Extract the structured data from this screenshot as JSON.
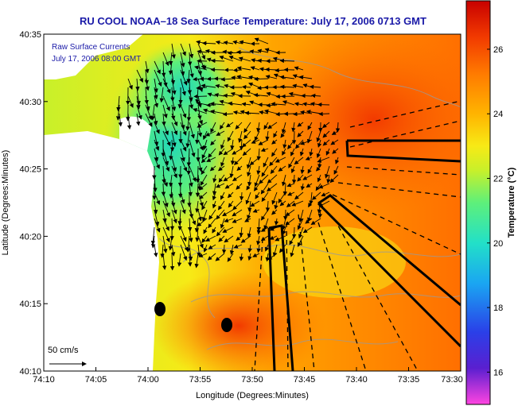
{
  "figure": {
    "title": "RU COOL  NOAA–18  Sea Surface Temperature:  July 17, 2006 0713 GMT",
    "legend_line1": "Raw Surface Currents",
    "legend_line2": "July 17, 2006 08:00 GMT",
    "scale_label": "50 cm/s",
    "xlabel": "Longitude (Degrees:Minutes)",
    "ylabel": "Latitude (Degrees:Minutes)",
    "xticks": [
      "74:10",
      "74:05",
      "74:00",
      "73:55",
      "73:50",
      "73:45",
      "73:40",
      "73:35",
      "73:30"
    ],
    "yticks": [
      "40:35",
      "40:30",
      "40:25",
      "40:20",
      "40:15",
      "40:10"
    ],
    "colorbar_ticks": [
      "26",
      "24",
      "22",
      "20",
      "18",
      "16"
    ],
    "colorbar_label": "Temperature (°C)",
    "colorbar_range": [
      15,
      27.5
    ],
    "colorbar_colors": [
      "#ff44e0",
      "#5a1fd0",
      "#2a40e8",
      "#1aa6f2",
      "#22e0c8",
      "#5ef07a",
      "#c8f02a",
      "#f7ea16",
      "#ffb400",
      "#ff7a00",
      "#f23a00",
      "#c80000"
    ],
    "land_color": "#ffffff",
    "track_color": "#000000"
  }
}
